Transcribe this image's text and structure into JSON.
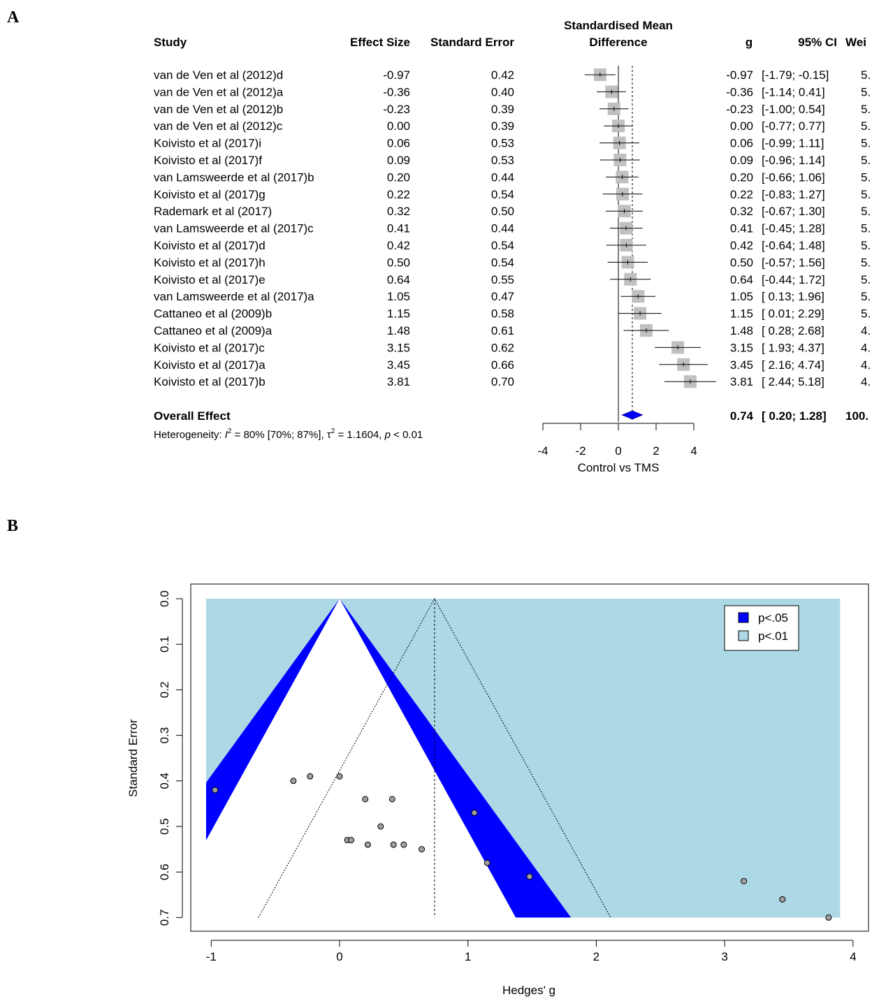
{
  "panel_a": {
    "letter": "A"
  },
  "panel_b": {
    "letter": "B"
  },
  "chart_data": [
    {
      "type": "forest",
      "headers": {
        "study": "Study",
        "effect_size": "Effect Size",
        "standard_error": "Standard Error",
        "smd_line1": "Standardised Mean",
        "smd_line2": "Difference",
        "g": "g",
        "ci": "95% CI",
        "weight": "Wei"
      },
      "studies": [
        {
          "name": "van de Ven et al (2012)d",
          "effect": "-0.97",
          "se": "0.42",
          "g": "-0.97",
          "ci": "[-1.79; -0.15]",
          "weight": "5.",
          "g_val": -0.97,
          "lo": -1.79,
          "hi": -0.15
        },
        {
          "name": "van de Ven et al (2012)a",
          "effect": "-0.36",
          "se": "0.40",
          "g": "-0.36",
          "ci": "[-1.14;  0.41]",
          "weight": "5.",
          "g_val": -0.36,
          "lo": -1.14,
          "hi": 0.41
        },
        {
          "name": "van de Ven et al (2012)b",
          "effect": "-0.23",
          "se": "0.39",
          "g": "-0.23",
          "ci": "[-1.00;  0.54]",
          "weight": "5.",
          "g_val": -0.23,
          "lo": -1.0,
          "hi": 0.54
        },
        {
          "name": "van de Ven et al (2012)c",
          "effect": "0.00",
          "se": "0.39",
          "g": "0.00",
          "ci": "[-0.77;  0.77]",
          "weight": "5.",
          "g_val": 0.0,
          "lo": -0.77,
          "hi": 0.77
        },
        {
          "name": "Koivisto et al (2017)i",
          "effect": "0.06",
          "se": "0.53",
          "g": "0.06",
          "ci": "[-0.99;  1.11]",
          "weight": "5.",
          "g_val": 0.06,
          "lo": -0.99,
          "hi": 1.11
        },
        {
          "name": "Koivisto et al (2017)f",
          "effect": "0.09",
          "se": "0.53",
          "g": "0.09",
          "ci": "[-0.96;  1.14]",
          "weight": "5.",
          "g_val": 0.09,
          "lo": -0.96,
          "hi": 1.14
        },
        {
          "name": "van Lamsweerde et al (2017)b",
          "effect": "0.20",
          "se": "0.44",
          "g": "0.20",
          "ci": "[-0.66;  1.06]",
          "weight": "5.",
          "g_val": 0.2,
          "lo": -0.66,
          "hi": 1.06
        },
        {
          "name": "Koivisto et al (2017)g",
          "effect": "0.22",
          "se": "0.54",
          "g": "0.22",
          "ci": "[-0.83;  1.27]",
          "weight": "5.",
          "g_val": 0.22,
          "lo": -0.83,
          "hi": 1.27
        },
        {
          "name": "Rademark et al (2017)",
          "effect": "0.32",
          "se": "0.50",
          "g": "0.32",
          "ci": "[-0.67;  1.30]",
          "weight": "5.",
          "g_val": 0.32,
          "lo": -0.67,
          "hi": 1.3
        },
        {
          "name": "van Lamsweerde et al (2017)c",
          "effect": "0.41",
          "se": "0.44",
          "g": "0.41",
          "ci": "[-0.45;  1.28]",
          "weight": "5.",
          "g_val": 0.41,
          "lo": -0.45,
          "hi": 1.28
        },
        {
          "name": "Koivisto et al (2017)d",
          "effect": "0.42",
          "se": "0.54",
          "g": "0.42",
          "ci": "[-0.64;  1.48]",
          "weight": "5.",
          "g_val": 0.42,
          "lo": -0.64,
          "hi": 1.48
        },
        {
          "name": "Koivisto et al (2017)h",
          "effect": "0.50",
          "se": "0.54",
          "g": "0.50",
          "ci": "[-0.57;  1.56]",
          "weight": "5.",
          "g_val": 0.5,
          "lo": -0.57,
          "hi": 1.56
        },
        {
          "name": "Koivisto et al (2017)e",
          "effect": "0.64",
          "se": "0.55",
          "g": "0.64",
          "ci": "[-0.44;  1.72]",
          "weight": "5.",
          "g_val": 0.64,
          "lo": -0.44,
          "hi": 1.72
        },
        {
          "name": "van Lamsweerde et al (2017)a",
          "effect": "1.05",
          "se": "0.47",
          "g": "1.05",
          "ci": "[ 0.13;  1.96]",
          "weight": "5.",
          "g_val": 1.05,
          "lo": 0.13,
          "hi": 1.96
        },
        {
          "name": "Cattaneo et al (2009)b",
          "effect": "1.15",
          "se": "0.58",
          "g": "1.15",
          "ci": "[ 0.01;  2.29]",
          "weight": "5.",
          "g_val": 1.15,
          "lo": 0.01,
          "hi": 2.29
        },
        {
          "name": "Cattaneo et al (2009)a",
          "effect": "1.48",
          "se": "0.61",
          "g": "1.48",
          "ci": "[ 0.28;  2.68]",
          "weight": "4.",
          "g_val": 1.48,
          "lo": 0.28,
          "hi": 2.68
        },
        {
          "name": "Koivisto et al (2017)c",
          "effect": "3.15",
          "se": "0.62",
          "g": "3.15",
          "ci": "[ 1.93;  4.37]",
          "weight": "4.",
          "g_val": 3.15,
          "lo": 1.93,
          "hi": 4.37
        },
        {
          "name": "Koivisto et al (2017)a",
          "effect": "3.45",
          "se": "0.66",
          "g": "3.45",
          "ci": "[ 2.16;  4.74]",
          "weight": "4.",
          "g_val": 3.45,
          "lo": 2.16,
          "hi": 4.74
        },
        {
          "name": "Koivisto et al (2017)b",
          "effect": "3.81",
          "se": "0.70",
          "g": "3.81",
          "ci": "[ 2.44;  5.18]",
          "weight": "4.",
          "g_val": 3.81,
          "lo": 2.44,
          "hi": 5.18
        }
      ],
      "overall": {
        "label": "Overall Effect",
        "g": "0.74",
        "ci": "[ 0.20;  1.28]",
        "weight": "100.",
        "g_val": 0.74,
        "lo": 0.2,
        "hi": 1.28
      },
      "heterogeneity": {
        "prefix": "Heterogeneity: ",
        "i2_symbol": "I",
        "i2_text": " = 80% [70%; 87%], ",
        "tau_symbol": "τ",
        "tau_text": " = 1.1604, ",
        "p_symbol": "p",
        "p_text": " < 0.01",
        "sup": "2"
      },
      "x_ticks": [
        "-4",
        "-2",
        "0",
        "2",
        "4"
      ],
      "xlim": [
        -4,
        4
      ],
      "xlabel": "Control vs TMS",
      "colors": {
        "square": "#c0c0c0",
        "diamond": "#0000ff"
      }
    },
    {
      "type": "scatter",
      "subtype": "contour-enhanced funnel plot",
      "xlabel": "Hedges' g",
      "ylabel": "Standard Error",
      "x_ticks": [
        "-1",
        "0",
        "1",
        "2",
        "3",
        "4"
      ],
      "y_ticks": [
        "0.0",
        "0.1",
        "0.2",
        "0.3",
        "0.4",
        "0.5",
        "0.6",
        "0.7"
      ],
      "xlim": [
        -1,
        4
      ],
      "ylim": [
        0,
        0.7
      ],
      "y_reversed": true,
      "summary_estimate": 0.74,
      "legend": [
        {
          "label": "p<.05",
          "color": "#0000ff"
        },
        {
          "label": "p<.01",
          "color": "#add8e6"
        }
      ],
      "legend_position": "top-right",
      "points": [
        {
          "x": -0.97,
          "y": 0.42
        },
        {
          "x": -0.36,
          "y": 0.4
        },
        {
          "x": -0.23,
          "y": 0.39
        },
        {
          "x": 0.0,
          "y": 0.39
        },
        {
          "x": 0.06,
          "y": 0.53
        },
        {
          "x": 0.09,
          "y": 0.53
        },
        {
          "x": 0.2,
          "y": 0.44
        },
        {
          "x": 0.22,
          "y": 0.54
        },
        {
          "x": 0.32,
          "y": 0.5
        },
        {
          "x": 0.41,
          "y": 0.44
        },
        {
          "x": 0.42,
          "y": 0.54
        },
        {
          "x": 0.5,
          "y": 0.54
        },
        {
          "x": 0.64,
          "y": 0.55
        },
        {
          "x": 1.05,
          "y": 0.47
        },
        {
          "x": 1.15,
          "y": 0.58
        },
        {
          "x": 1.48,
          "y": 0.61
        },
        {
          "x": 3.15,
          "y": 0.62
        },
        {
          "x": 3.45,
          "y": 0.66
        },
        {
          "x": 3.81,
          "y": 0.7
        }
      ],
      "colors": {
        "point": "#a0a0a0",
        "inner_band": "#0000ff",
        "outer_region": "#add8e6",
        "no_sig": "#ffffff"
      }
    }
  ]
}
